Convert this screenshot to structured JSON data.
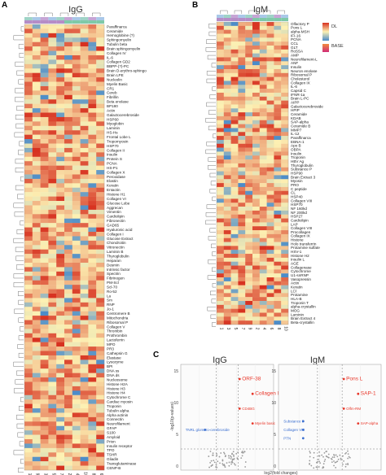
{
  "panels": {
    "a": {
      "letter": "A",
      "title": "IgG"
    },
    "b": {
      "letter": "B",
      "title": "IgM"
    },
    "c": {
      "letter": "C",
      "title_left": "IgG",
      "title_right": "IgM"
    }
  },
  "heatmap_a": {
    "columns": [
      "1",
      "9",
      "3",
      "5",
      "7",
      "2",
      "4",
      "10",
      "8",
      "6"
    ],
    "rows": [
      "Paraffinarca",
      "Ceramide",
      "Hemoglobine (?)",
      "Sphingomyelin",
      "Tubulin beta",
      "Brain sphingomyelin",
      "Collagen IV",
      "IL-6",
      "Collagen GD2",
      "BBPP-(?)-PC",
      "Brain D-erythro-sphingo",
      "Brain LPE",
      "Nucleolin",
      "Myelin Basic",
      "CR1",
      "Cereb",
      "Fibrillin",
      "Beta enolase",
      "BP180",
      "Actin",
      "Galactocerebroside",
      "HSP60",
      "Myoglobin",
      "Laminin",
      "HS-Hs",
      "Frontal Lobe L",
      "Tropomyosin",
      "HSP70",
      "Collagen II",
      "Insulin",
      "Protein S",
      "PCNA",
      "HS-P1",
      "Collagen X",
      "Peroxidase",
      "Elastin",
      "Keratin",
      "Entactin",
      "Histone H1",
      "Collagen VI",
      "Glucose Lobe",
      "Aggrecan",
      "Vimentin",
      "Cardiolipin",
      "Fibronectin",
      "GAD65",
      "Hyaluronic acid",
      "Collagen I",
      "Glucose Extract",
      "Chondroitin",
      "Vitronectin",
      "Laminin B",
      "Thyroglobulin",
      "Heparan",
      "Desmin",
      "Intrinsic factor",
      "Spectrin",
      "Fibrinogen",
      "PM-Scl",
      "Scl-70",
      "Ro-52",
      "La",
      "Sm",
      "RNP",
      "Jo-1",
      "Centromere B",
      "Mitochondria",
      "Ribosomal P",
      "Collagen V",
      "Thrombin",
      "Prothrombin",
      "Lactoferrin",
      "MPO",
      "PR3",
      "Cathepsin G",
      "Elastase",
      "Lysozyme",
      "BPI",
      "DNA ss",
      "DNA ds",
      "Nucleosome",
      "Histone H2A",
      "Histone H3",
      "Histone H4",
      "Cytochrome C",
      "Cardiac myosin",
      "Troponin",
      "Tubulin alpha",
      "Alpha actinin",
      "Connectin",
      "Neurofilament",
      "GFAP",
      "S100",
      "Amyloid",
      "Prion",
      "Insulin receptor",
      "TPO",
      "TSHR",
      "Gliadin",
      "Transglutaminase",
      "CENP-B"
    ],
    "legend_hint": "red high / blue low"
  },
  "heatmap_b": {
    "columns": [
      "1",
      "3",
      "5",
      "7",
      "9",
      "2",
      "4",
      "6",
      "8",
      "10"
    ],
    "rows": [
      "Olfactory P",
      "Pons L",
      "alpha-MSH",
      "IFI-16",
      "PCNA",
      "CCL",
      "GLT",
      "RoSSA",
      "AMP",
      "Neurofilament-L",
      "ANF",
      "Insulin",
      "Neuron enolase",
      "Ribosomal P",
      "Cholesterol",
      "Collagen IX",
      "IL-6",
      "Capsid C",
      "IFNR-1a",
      "Brain L-PC",
      "AIPP",
      "Galactocerebroside",
      "HPIP",
      "Ceramide",
      "KDAB",
      "SAP-alpha",
      "Ceramide B",
      "MMP7",
      "IL-12",
      "Paraffinarca",
      "EBNA-1",
      "Apo B",
      "OBPA",
      "Insulin",
      "Troponin",
      "HBV Ag",
      "Thyroglobulin",
      "Substance P",
      "HSP90",
      "Brain Extract 3",
      "Myosin",
      "PRO",
      "C peptide",
      "CL",
      "HSP40",
      "Collagen VIII",
      "HSP70",
      "NF 160kd",
      "NF 200kd",
      "HSP27",
      "Cardiolipin",
      "LAP",
      "Collagen VIII",
      "Procollagen",
      "Collagen IX",
      "Histone",
      "Holo transferrin",
      "Protamine sulfate",
      "HSV-1",
      "Histone H2",
      "Insulin L",
      "AGE",
      "Collagenase",
      "Cytochrome",
      "U1-snRNP",
      "Vasopressin",
      "Actin",
      "Keratin",
      "LCl",
      "Protamine",
      "HLA-B",
      "Troponin T",
      "alpha-crystallin",
      "MOG",
      "Laminin",
      "Brain Extract 4",
      "Beta-crystallin"
    ],
    "legend": {
      "lo_label": "DL",
      "hi_label": "BASE"
    }
  },
  "volcano": {
    "xlabel": "log2(fold changes)",
    "ylabel": "-log10(p-values)",
    "igg_labels": [
      {
        "text": "ORF-38",
        "color": "#e8372a"
      },
      {
        "text": "Collagen IV",
        "color": "#e8372a"
      },
      {
        "text": "CD4BG",
        "color": "#e8372a"
      },
      {
        "text": "Myelin basic",
        "color": "#e8372a"
      },
      {
        "text": "TNRL glomero-cerebroside",
        "color": "#3b6fd0"
      }
    ],
    "igm_labels": [
      {
        "text": "Pons L",
        "color": "#e8372a"
      },
      {
        "text": "SAP-1",
        "color": "#e8372a"
      },
      {
        "text": "Olfm-RM",
        "color": "#e8372a"
      },
      {
        "text": "SAP-alpha",
        "color": "#e8372a"
      },
      {
        "text": "Collagen VIII",
        "color": "#3b6fd0"
      },
      {
        "text": "PTN",
        "color": "#3b6fd0"
      },
      {
        "text": "Substance P",
        "color": "#3b6fd0"
      }
    ],
    "igg_yticks": [
      "0",
      "5",
      "10",
      "15"
    ],
    "igm_yticks": [
      "0",
      "5",
      "10",
      "15"
    ]
  },
  "colors": {
    "high": "#d7301f",
    "mid": "#fdf1b3",
    "low": "#4a8bc9",
    "grid": "#d0d0d0",
    "frame": "#999999"
  }
}
